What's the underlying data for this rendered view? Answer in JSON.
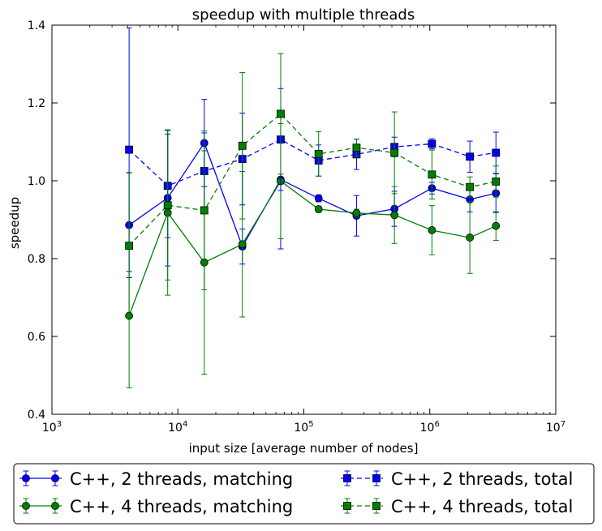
{
  "chart_data": {
    "type": "line",
    "title": "speedup with multiple threads",
    "xlabel": "input size [average number of nodes]",
    "ylabel": "speedup",
    "xscale": "log",
    "xlim": [
      1000,
      10000000
    ],
    "ylim": [
      0.4,
      1.4
    ],
    "x_ticks": [
      {
        "value": 1000,
        "base": "10",
        "exp": "3"
      },
      {
        "value": 10000,
        "base": "10",
        "exp": "4"
      },
      {
        "value": 100000,
        "base": "10",
        "exp": "5"
      },
      {
        "value": 1000000,
        "base": "10",
        "exp": "6"
      },
      {
        "value": 10000000,
        "base": "10",
        "exp": "7"
      }
    ],
    "y_ticks": [
      {
        "value": 0.4,
        "label": "0.4"
      },
      {
        "value": 0.6,
        "label": "0.6"
      },
      {
        "value": 0.8,
        "label": "0.8"
      },
      {
        "value": 1.0,
        "label": "1.0"
      },
      {
        "value": 1.2,
        "label": "1.2"
      },
      {
        "value": 1.4,
        "label": "1.4"
      }
    ],
    "grid": false,
    "legend_position": "below plot, two columns",
    "x": [
      4100,
      8300,
      16200,
      32500,
      65500,
      131000,
      262000,
      524000,
      1040000,
      2080000,
      3350000
    ],
    "series": [
      {
        "name": "C++, 2 threads, matching",
        "color": "#0000ff",
        "marker": "circle",
        "linestyle": "solid",
        "y": [
          0.886,
          0.956,
          1.097,
          0.831,
          1.003,
          0.955,
          0.91,
          0.928,
          0.981,
          0.952,
          0.968
        ],
        "yerr": [
          0.135,
          0.175,
          0.112,
          0.045,
          0.178,
          0.009,
          0.052,
          0.045,
          0.015,
          0.032,
          0.05
        ]
      },
      {
        "name": "C++, 4 threads, matching",
        "color": "#008000",
        "marker": "circle",
        "linestyle": "solid",
        "y": [
          0.653,
          0.918,
          0.79,
          0.837,
          0.999,
          0.927,
          0.917,
          0.912,
          0.873,
          0.854,
          0.884
        ],
        "yerr": [
          0.185,
          0.212,
          0.287,
          0.187,
          0.148,
          0.008,
          0.01,
          0.073,
          0.063,
          0.092,
          0.037
        ]
      },
      {
        "name": "C++, 2 threads, total",
        "color": "#0000ff",
        "marker": "square",
        "linestyle": "dashed",
        "y": [
          1.08,
          0.987,
          1.025,
          1.056,
          1.106,
          1.052,
          1.068,
          1.087,
          1.095,
          1.062,
          1.072
        ],
        "yerr": [
          0.313,
          0.133,
          0.098,
          0.118,
          0.131,
          0.04,
          0.039,
          0.025,
          0.013,
          0.04,
          0.053
        ]
      },
      {
        "name": "C++, 4 threads, total",
        "color": "#008000",
        "marker": "square",
        "linestyle": "dashed",
        "y": [
          0.833,
          0.937,
          0.924,
          1.09,
          1.172,
          1.069,
          1.085,
          1.072,
          1.016,
          0.984,
          0.998
        ],
        "yerr": [
          0.187,
          0.192,
          0.204,
          0.188,
          0.155,
          0.057,
          0.022,
          0.105,
          0.063,
          0.026,
          0.04
        ]
      }
    ]
  }
}
